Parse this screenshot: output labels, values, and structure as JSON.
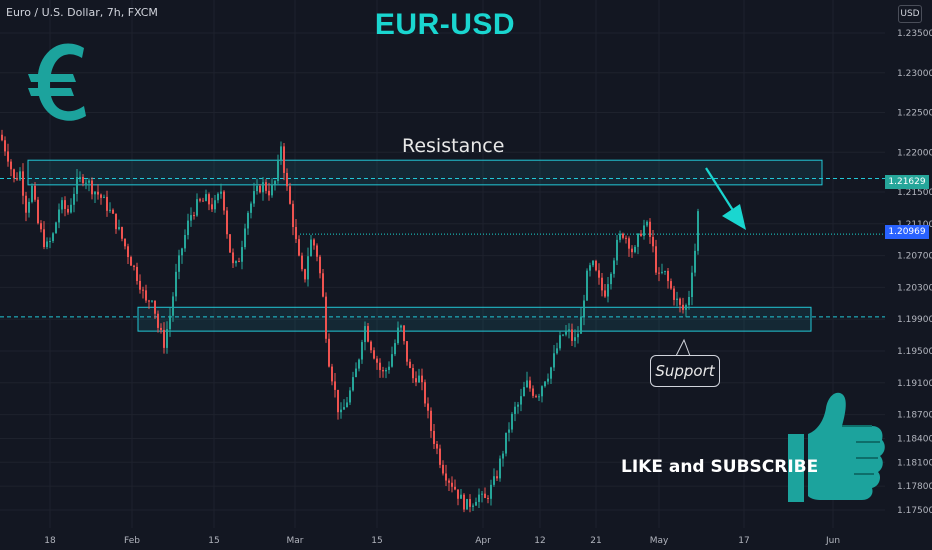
{
  "header": {
    "symbol": "Euro / U.S. Dollar, 7h, FXCM",
    "title": "EUR-USD",
    "currency": "USD"
  },
  "annotations": {
    "resistance": "Resistance",
    "support": "Support",
    "cta": "LIKE and SUBSCRIBE"
  },
  "icons": [
    "euro-icon",
    "thumbs-up-icon",
    "arrow-down-icon"
  ],
  "colors": {
    "background": "#131722",
    "bull": "#26a69a",
    "bear": "#ef5350",
    "accent": "#1ad6d0",
    "zone": "#22c7d6",
    "current_price_bg": "#2962ff"
  },
  "chart_data": {
    "type": "candlestick",
    "title": "EUR-USD",
    "x_ticks": [
      "18",
      "Feb",
      "15",
      "Mar",
      "15",
      "Apr",
      "12",
      "21",
      "May",
      "17",
      "Jun"
    ],
    "y_ticks": [
      "1.23500",
      "1.23000",
      "1.22500",
      "1.22000",
      "1.21500",
      "1.21100",
      "1.20700",
      "1.20300",
      "1.19900",
      "1.19500",
      "1.19100",
      "1.18700",
      "1.18400",
      "1.18100",
      "1.17800",
      "1.17500"
    ],
    "ylim": [
      1.173,
      1.237
    ],
    "price_tags": {
      "resistance_line": "1.21629",
      "current": "1.20969"
    },
    "zones": [
      {
        "label": "Resistance",
        "from": 1.2159,
        "to": 1.219
      },
      {
        "label": "Support",
        "from": 1.1975,
        "to": 1.2005
      }
    ],
    "levels": [
      1.2167,
      1.1993,
      1.2097
    ],
    "path_points": [
      [
        0,
        1.2222
      ],
      [
        8,
        1.2195
      ],
      [
        14,
        1.2165
      ],
      [
        20,
        1.2175
      ],
      [
        26,
        1.213
      ],
      [
        32,
        1.2155
      ],
      [
        38,
        1.211
      ],
      [
        46,
        1.208
      ],
      [
        52,
        1.209
      ],
      [
        60,
        1.2135
      ],
      [
        68,
        1.2125
      ],
      [
        76,
        1.216
      ],
      [
        84,
        1.217
      ],
      [
        92,
        1.2155
      ],
      [
        100,
        1.2145
      ],
      [
        108,
        1.213
      ],
      [
        116,
        1.211
      ],
      [
        124,
        1.2085
      ],
      [
        132,
        1.206
      ],
      [
        140,
        1.2035
      ],
      [
        146,
        1.201
      ],
      [
        152,
        1.202
      ],
      [
        158,
        1.198
      ],
      [
        164,
        1.196
      ],
      [
        170,
        1.1995
      ],
      [
        176,
        1.2045
      ],
      [
        182,
        1.208
      ],
      [
        190,
        1.212
      ],
      [
        198,
        1.2135
      ],
      [
        206,
        1.214
      ],
      [
        214,
        1.213
      ],
      [
        222,
        1.2155
      ],
      [
        228,
        1.209
      ],
      [
        234,
        1.205
      ],
      [
        240,
        1.207
      ],
      [
        246,
        1.212
      ],
      [
        254,
        1.2145
      ],
      [
        262,
        1.216
      ],
      [
        270,
        1.215
      ],
      [
        276,
        1.2165
      ],
      [
        281,
        1.221
      ],
      [
        286,
        1.216
      ],
      [
        292,
        1.212
      ],
      [
        298,
        1.207
      ],
      [
        304,
        1.2035
      ],
      [
        310,
        1.209
      ],
      [
        316,
        1.208
      ],
      [
        322,
        1.203
      ],
      [
        328,
        1.1945
      ],
      [
        334,
        1.1905
      ],
      [
        340,
        1.1865
      ],
      [
        346,
        1.1885
      ],
      [
        352,
        1.1905
      ],
      [
        358,
        1.1935
      ],
      [
        364,
        1.1985
      ],
      [
        370,
        1.196
      ],
      [
        376,
        1.194
      ],
      [
        382,
        1.192
      ],
      [
        388,
        1.193
      ],
      [
        394,
        1.1955
      ],
      [
        400,
        1.1985
      ],
      [
        406,
        1.1945
      ],
      [
        412,
        1.1915
      ],
      [
        418,
        1.192
      ],
      [
        424,
        1.1895
      ],
      [
        430,
        1.1855
      ],
      [
        436,
        1.183
      ],
      [
        442,
        1.1805
      ],
      [
        448,
        1.179
      ],
      [
        454,
        1.178
      ],
      [
        460,
        1.1765
      ],
      [
        466,
        1.1755
      ],
      [
        472,
        1.176
      ],
      [
        478,
        1.177
      ],
      [
        484,
        1.176
      ],
      [
        490,
        1.1775
      ],
      [
        496,
        1.179
      ],
      [
        502,
        1.182
      ],
      [
        508,
        1.185
      ],
      [
        514,
        1.1875
      ],
      [
        520,
        1.1885
      ],
      [
        526,
        1.191
      ],
      [
        532,
        1.19
      ],
      [
        538,
        1.1895
      ],
      [
        544,
        1.1915
      ],
      [
        550,
        1.1925
      ],
      [
        556,
        1.195
      ],
      [
        562,
        1.197
      ],
      [
        568,
        1.1975
      ],
      [
        574,
        1.196
      ],
      [
        580,
        1.198
      ],
      [
        586,
        1.204
      ],
      [
        592,
        1.206
      ],
      [
        598,
        1.204
      ],
      [
        604,
        1.202
      ],
      [
        610,
        1.205
      ],
      [
        616,
        1.208
      ],
      [
        622,
        1.21
      ],
      [
        628,
        1.209
      ],
      [
        634,
        1.207
      ],
      [
        640,
        1.21
      ],
      [
        646,
        1.211
      ],
      [
        652,
        1.2085
      ],
      [
        658,
        1.204
      ],
      [
        664,
        1.205
      ],
      [
        670,
        1.203
      ],
      [
        676,
        1.2015
      ],
      [
        682,
        1.2
      ],
      [
        688,
        1.201
      ],
      [
        692,
        1.2055
      ],
      [
        696,
        1.2085
      ],
      [
        700,
        1.2163
      ]
    ]
  }
}
